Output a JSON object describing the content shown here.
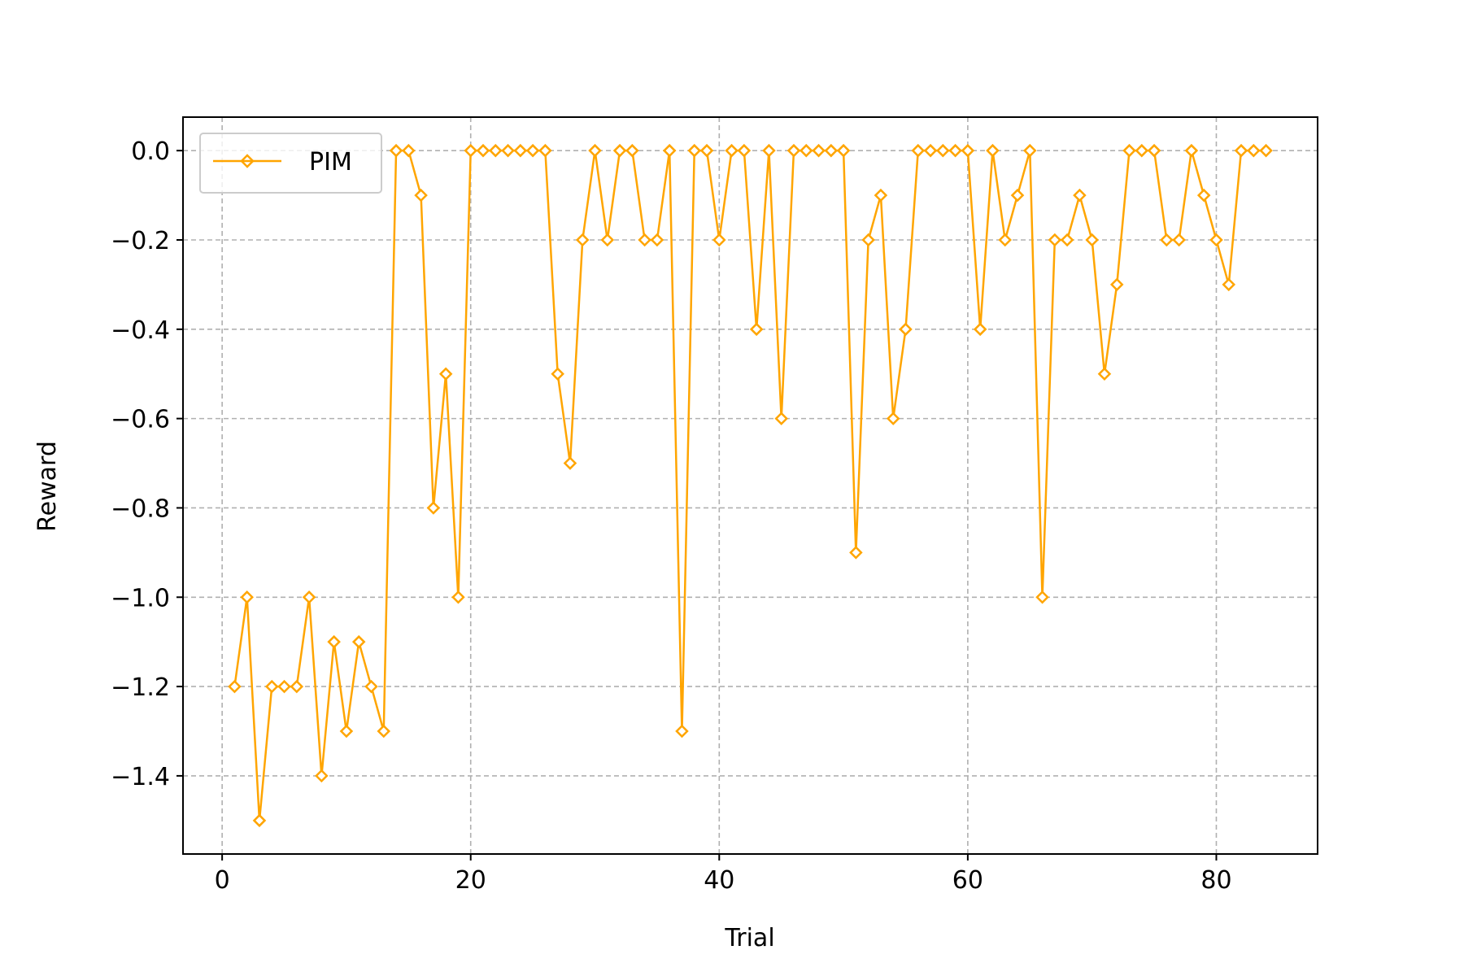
{
  "chart_data": {
    "type": "line",
    "title": "",
    "xlabel": "Trial",
    "ylabel": "Reward",
    "xlim": [
      -3.15,
      88.15
    ],
    "ylim": [
      -1.575,
      0.075
    ],
    "xticks": [
      0,
      20,
      40,
      60,
      80
    ],
    "xtick_labels": [
      "0",
      "20",
      "40",
      "60",
      "80"
    ],
    "yticks": [
      0.0,
      -0.2,
      -0.4,
      -0.6,
      -0.8,
      -1.0,
      -1.2,
      -1.4
    ],
    "ytick_labels": [
      "0.0",
      "−0.2",
      "−0.4",
      "−0.6",
      "−0.8",
      "−1.0",
      "−1.2",
      "−1.4"
    ],
    "grid": true,
    "legend_position": "top-left",
    "series": [
      {
        "name": "PIM",
        "color": "#FFA500",
        "marker": "diamond-open",
        "x": [
          1,
          2,
          3,
          4,
          5,
          6,
          7,
          8,
          9,
          10,
          11,
          12,
          13,
          14,
          15,
          16,
          17,
          18,
          19,
          20,
          21,
          22,
          23,
          24,
          25,
          26,
          27,
          28,
          29,
          30,
          31,
          32,
          33,
          34,
          35,
          36,
          37,
          38,
          39,
          40,
          41,
          42,
          43,
          44,
          45,
          46,
          47,
          48,
          49,
          50,
          51,
          52,
          53,
          54,
          55,
          56,
          57,
          58,
          59,
          60,
          61,
          62,
          63,
          64,
          65,
          66,
          67,
          68,
          69,
          70,
          71,
          72,
          73,
          74,
          75,
          76,
          77,
          78,
          79,
          80,
          81,
          82,
          83,
          84
        ],
        "y": [
          -1.2,
          -1.0,
          -1.5,
          -1.2,
          -1.2,
          -1.2,
          -1.0,
          -1.4,
          -1.1,
          -1.3,
          -1.1,
          -1.2,
          -1.3,
          0.0,
          0.0,
          -0.1,
          -0.8,
          -0.5,
          -1.0,
          0.0,
          0.0,
          0.0,
          0.0,
          0.0,
          0.0,
          0.0,
          -0.5,
          -0.7,
          -0.2,
          0.0,
          -0.2,
          0.0,
          0.0,
          -0.2,
          -0.2,
          0.0,
          -1.3,
          0.0,
          0.0,
          -0.2,
          0.0,
          0.0,
          -0.4,
          0.0,
          -0.6,
          0.0,
          0.0,
          0.0,
          0.0,
          0.0,
          -0.9,
          -0.2,
          -0.1,
          -0.6,
          -0.4,
          0.0,
          0.0,
          0.0,
          0.0,
          0.0,
          -0.4,
          0.0,
          -0.2,
          -0.1,
          0.0,
          -1.0,
          -0.2,
          -0.2,
          -0.1,
          -0.2,
          -0.5,
          -0.3,
          0.0,
          0.0,
          0.0,
          -0.2,
          -0.2,
          0.0,
          -0.1,
          -0.2,
          -0.3,
          0.0,
          0.0,
          0.0
        ]
      }
    ]
  }
}
